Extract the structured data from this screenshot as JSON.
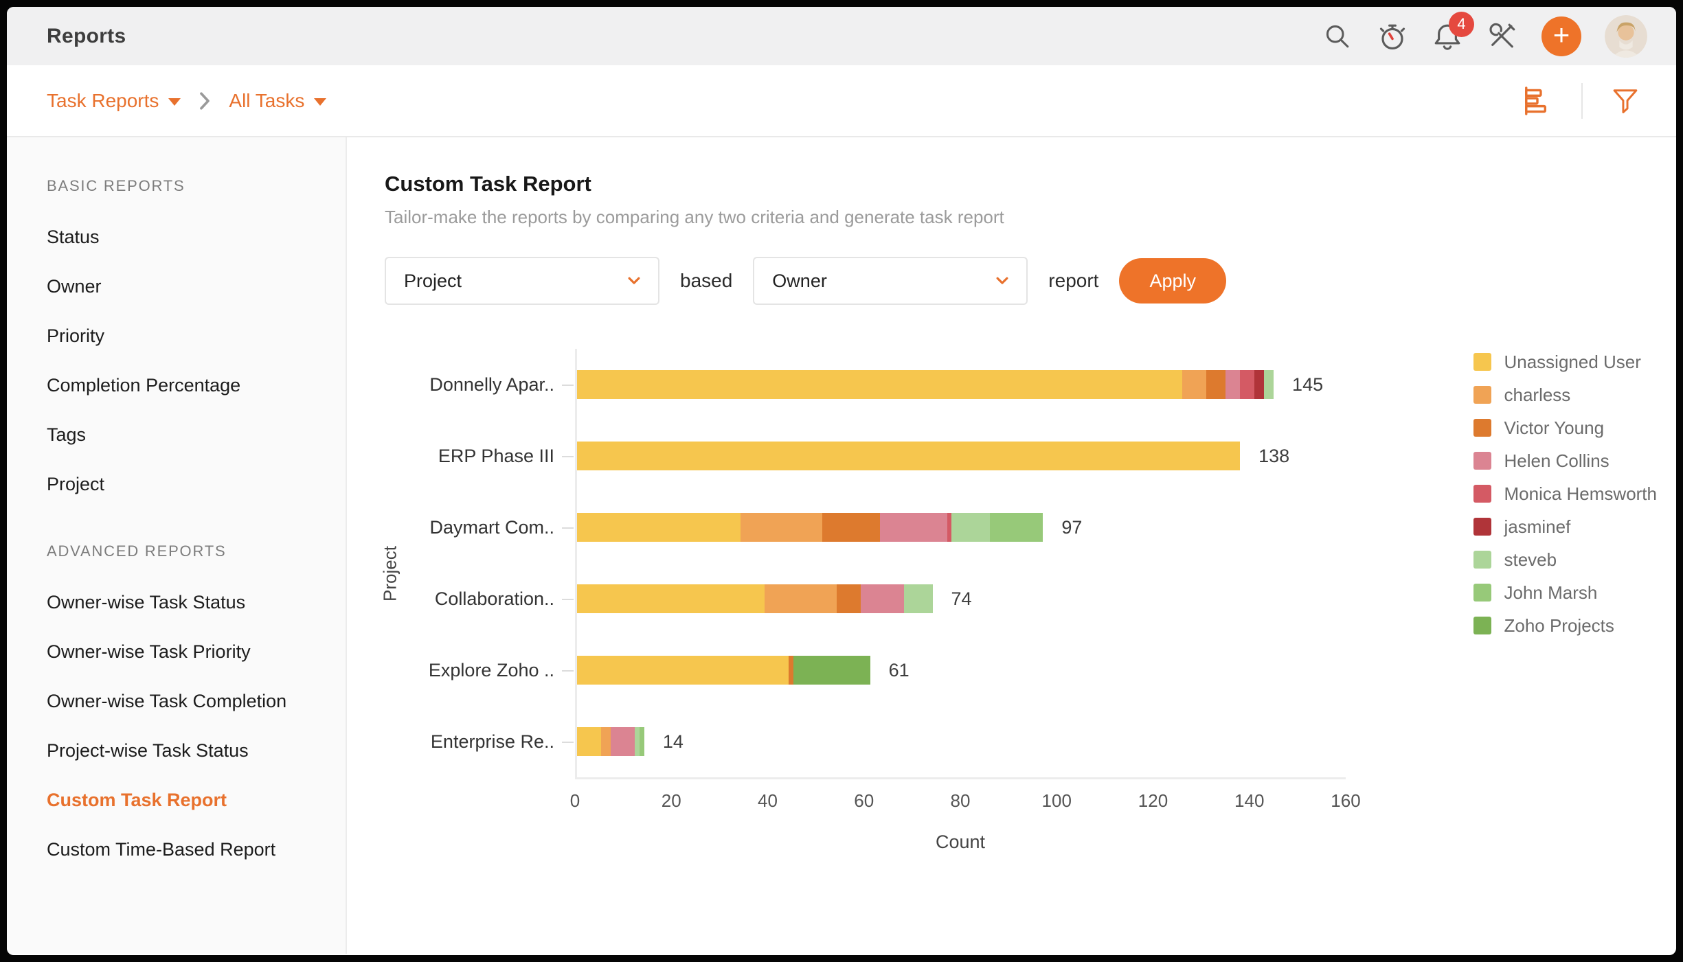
{
  "header": {
    "title": "Reports",
    "notification_count": "4"
  },
  "breadcrumb": {
    "level1": "Task Reports",
    "level2": "All Tasks"
  },
  "sidebar": {
    "sections": [
      {
        "title": "BASIC REPORTS",
        "items": [
          {
            "label": "Status",
            "active": false
          },
          {
            "label": "Owner",
            "active": false
          },
          {
            "label": "Priority",
            "active": false
          },
          {
            "label": "Completion Percentage",
            "active": false
          },
          {
            "label": "Tags",
            "active": false
          },
          {
            "label": "Project",
            "active": false
          }
        ]
      },
      {
        "title": "ADVANCED REPORTS",
        "items": [
          {
            "label": "Owner-wise Task Status",
            "active": false
          },
          {
            "label": "Owner-wise Task Priority",
            "active": false
          },
          {
            "label": "Owner-wise Task Completion",
            "active": false
          },
          {
            "label": "Project-wise Task Status",
            "active": false
          },
          {
            "label": "Custom Task Report",
            "active": true
          },
          {
            "label": "Custom Time-Based Report",
            "active": false
          }
        ]
      }
    ]
  },
  "main": {
    "title": "Custom Task Report",
    "subtitle": "Tailor-make the reports by comparing any two criteria and generate task report",
    "controls": {
      "first_select": "Project",
      "based_label": "based",
      "second_select": "Owner",
      "report_label": "report",
      "apply_label": "Apply"
    }
  },
  "colors": {
    "accent": "#e8712d",
    "apply": "#ee7329",
    "badge": "#e5493f"
  },
  "chart_data": {
    "type": "bar",
    "orientation": "horizontal",
    "stacked": true,
    "title": "",
    "xlabel": "Count",
    "ylabel": "Project",
    "xlim": [
      0,
      160
    ],
    "xticks": [
      0,
      20,
      40,
      60,
      80,
      100,
      120,
      140,
      160
    ],
    "grid": false,
    "legend_position": "right",
    "categories": [
      "Donnelly Apar..",
      "ERP Phase III",
      "Daymart Com..",
      "Collaboration..",
      "Explore Zoho ..",
      "Enterprise Re.."
    ],
    "totals": [
      145,
      138,
      97,
      74,
      61,
      14
    ],
    "series": [
      {
        "name": "Unassigned User",
        "color": "#f6c64e",
        "values": [
          126,
          138,
          34,
          39,
          44,
          5
        ]
      },
      {
        "name": "charless",
        "color": "#f0a355",
        "values": [
          5,
          0,
          17,
          15,
          0,
          2
        ]
      },
      {
        "name": "Victor Young",
        "color": "#dd7a2e",
        "values": [
          4,
          0,
          12,
          5,
          1,
          0
        ]
      },
      {
        "name": "Helen Collins",
        "color": "#db8492",
        "values": [
          3,
          0,
          14,
          9,
          0,
          5
        ]
      },
      {
        "name": "Monica Hemsworth",
        "color": "#d45a64",
        "values": [
          3,
          0,
          1,
          0,
          0,
          0
        ]
      },
      {
        "name": "jasminef",
        "color": "#b03439",
        "values": [
          2,
          0,
          0,
          0,
          0,
          0
        ]
      },
      {
        "name": "steveb",
        "color": "#acd599",
        "values": [
          2,
          0,
          8,
          6,
          0,
          1
        ]
      },
      {
        "name": "John Marsh",
        "color": "#97c979",
        "values": [
          0,
          0,
          11,
          0,
          0,
          1
        ]
      },
      {
        "name": "Zoho Projects",
        "color": "#7cb254",
        "values": [
          0,
          0,
          0,
          0,
          16,
          0
        ]
      }
    ]
  }
}
